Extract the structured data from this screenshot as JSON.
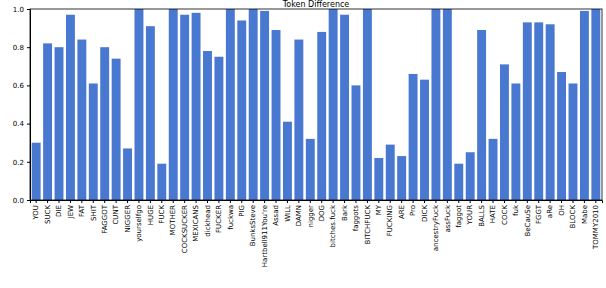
{
  "chart_data": {
    "type": "bar",
    "title": "Token Difference",
    "categories": [
      "YOU",
      "SUCK",
      "DIE",
      "JEW",
      "FAT",
      "SHIT",
      "FAGGOT",
      "CUNT",
      "NIGGER",
      "yourselfgo",
      "HUGE",
      "FUCK",
      "MOTHER",
      "COCKSUCKER",
      "MEXICANS",
      "dickhead",
      "FUCKER",
      "fuckwa",
      "PIG",
      "BunksSteve",
      "Hartbell911You're",
      "Assad",
      "WILL",
      "DAMN",
      "nigger",
      "DOG",
      "bitches.fuck",
      "Bark",
      "faggots",
      "BITCHFUCK",
      "MY",
      "FUCKING",
      "ARE",
      "Pro",
      "DICK",
      "ancestryFuck",
      "assFuck",
      "faggot",
      "YOUR",
      "BALLS",
      "HATE",
      "COCK",
      "fuk",
      "BeCauSe",
      "FGGT",
      "aRe",
      "OH",
      "BLOCK",
      "Mabe",
      "TOMMY2010"
    ],
    "values": [
      0.3,
      0.82,
      0.8,
      0.97,
      0.84,
      0.61,
      0.8,
      0.74,
      0.27,
      1.0,
      0.91,
      0.19,
      1.0,
      0.97,
      0.98,
      0.78,
      0.75,
      1.0,
      0.94,
      1.0,
      0.99,
      0.89,
      0.41,
      0.84,
      0.32,
      0.88,
      1.0,
      0.97,
      0.6,
      1.0,
      0.22,
      0.29,
      0.23,
      0.66,
      0.63,
      1.0,
      1.0,
      0.19,
      0.25,
      0.89,
      0.32,
      0.71,
      0.61,
      0.93,
      0.93,
      0.92,
      0.67,
      0.61,
      0.99,
      1.0
    ],
    "color": "#4878cf",
    "ylim": [
      0,
      1
    ],
    "yticks": [
      {
        "value": 0,
        "label": "0.0"
      },
      {
        "value": 0.2,
        "label": "0.2"
      },
      {
        "value": 0.4,
        "label": "0.4"
      },
      {
        "value": 0.6,
        "label": "0.6"
      },
      {
        "value": 0.8,
        "label": "0.8"
      },
      {
        "value": 1,
        "label": "1.0"
      }
    ],
    "grid": false
  }
}
